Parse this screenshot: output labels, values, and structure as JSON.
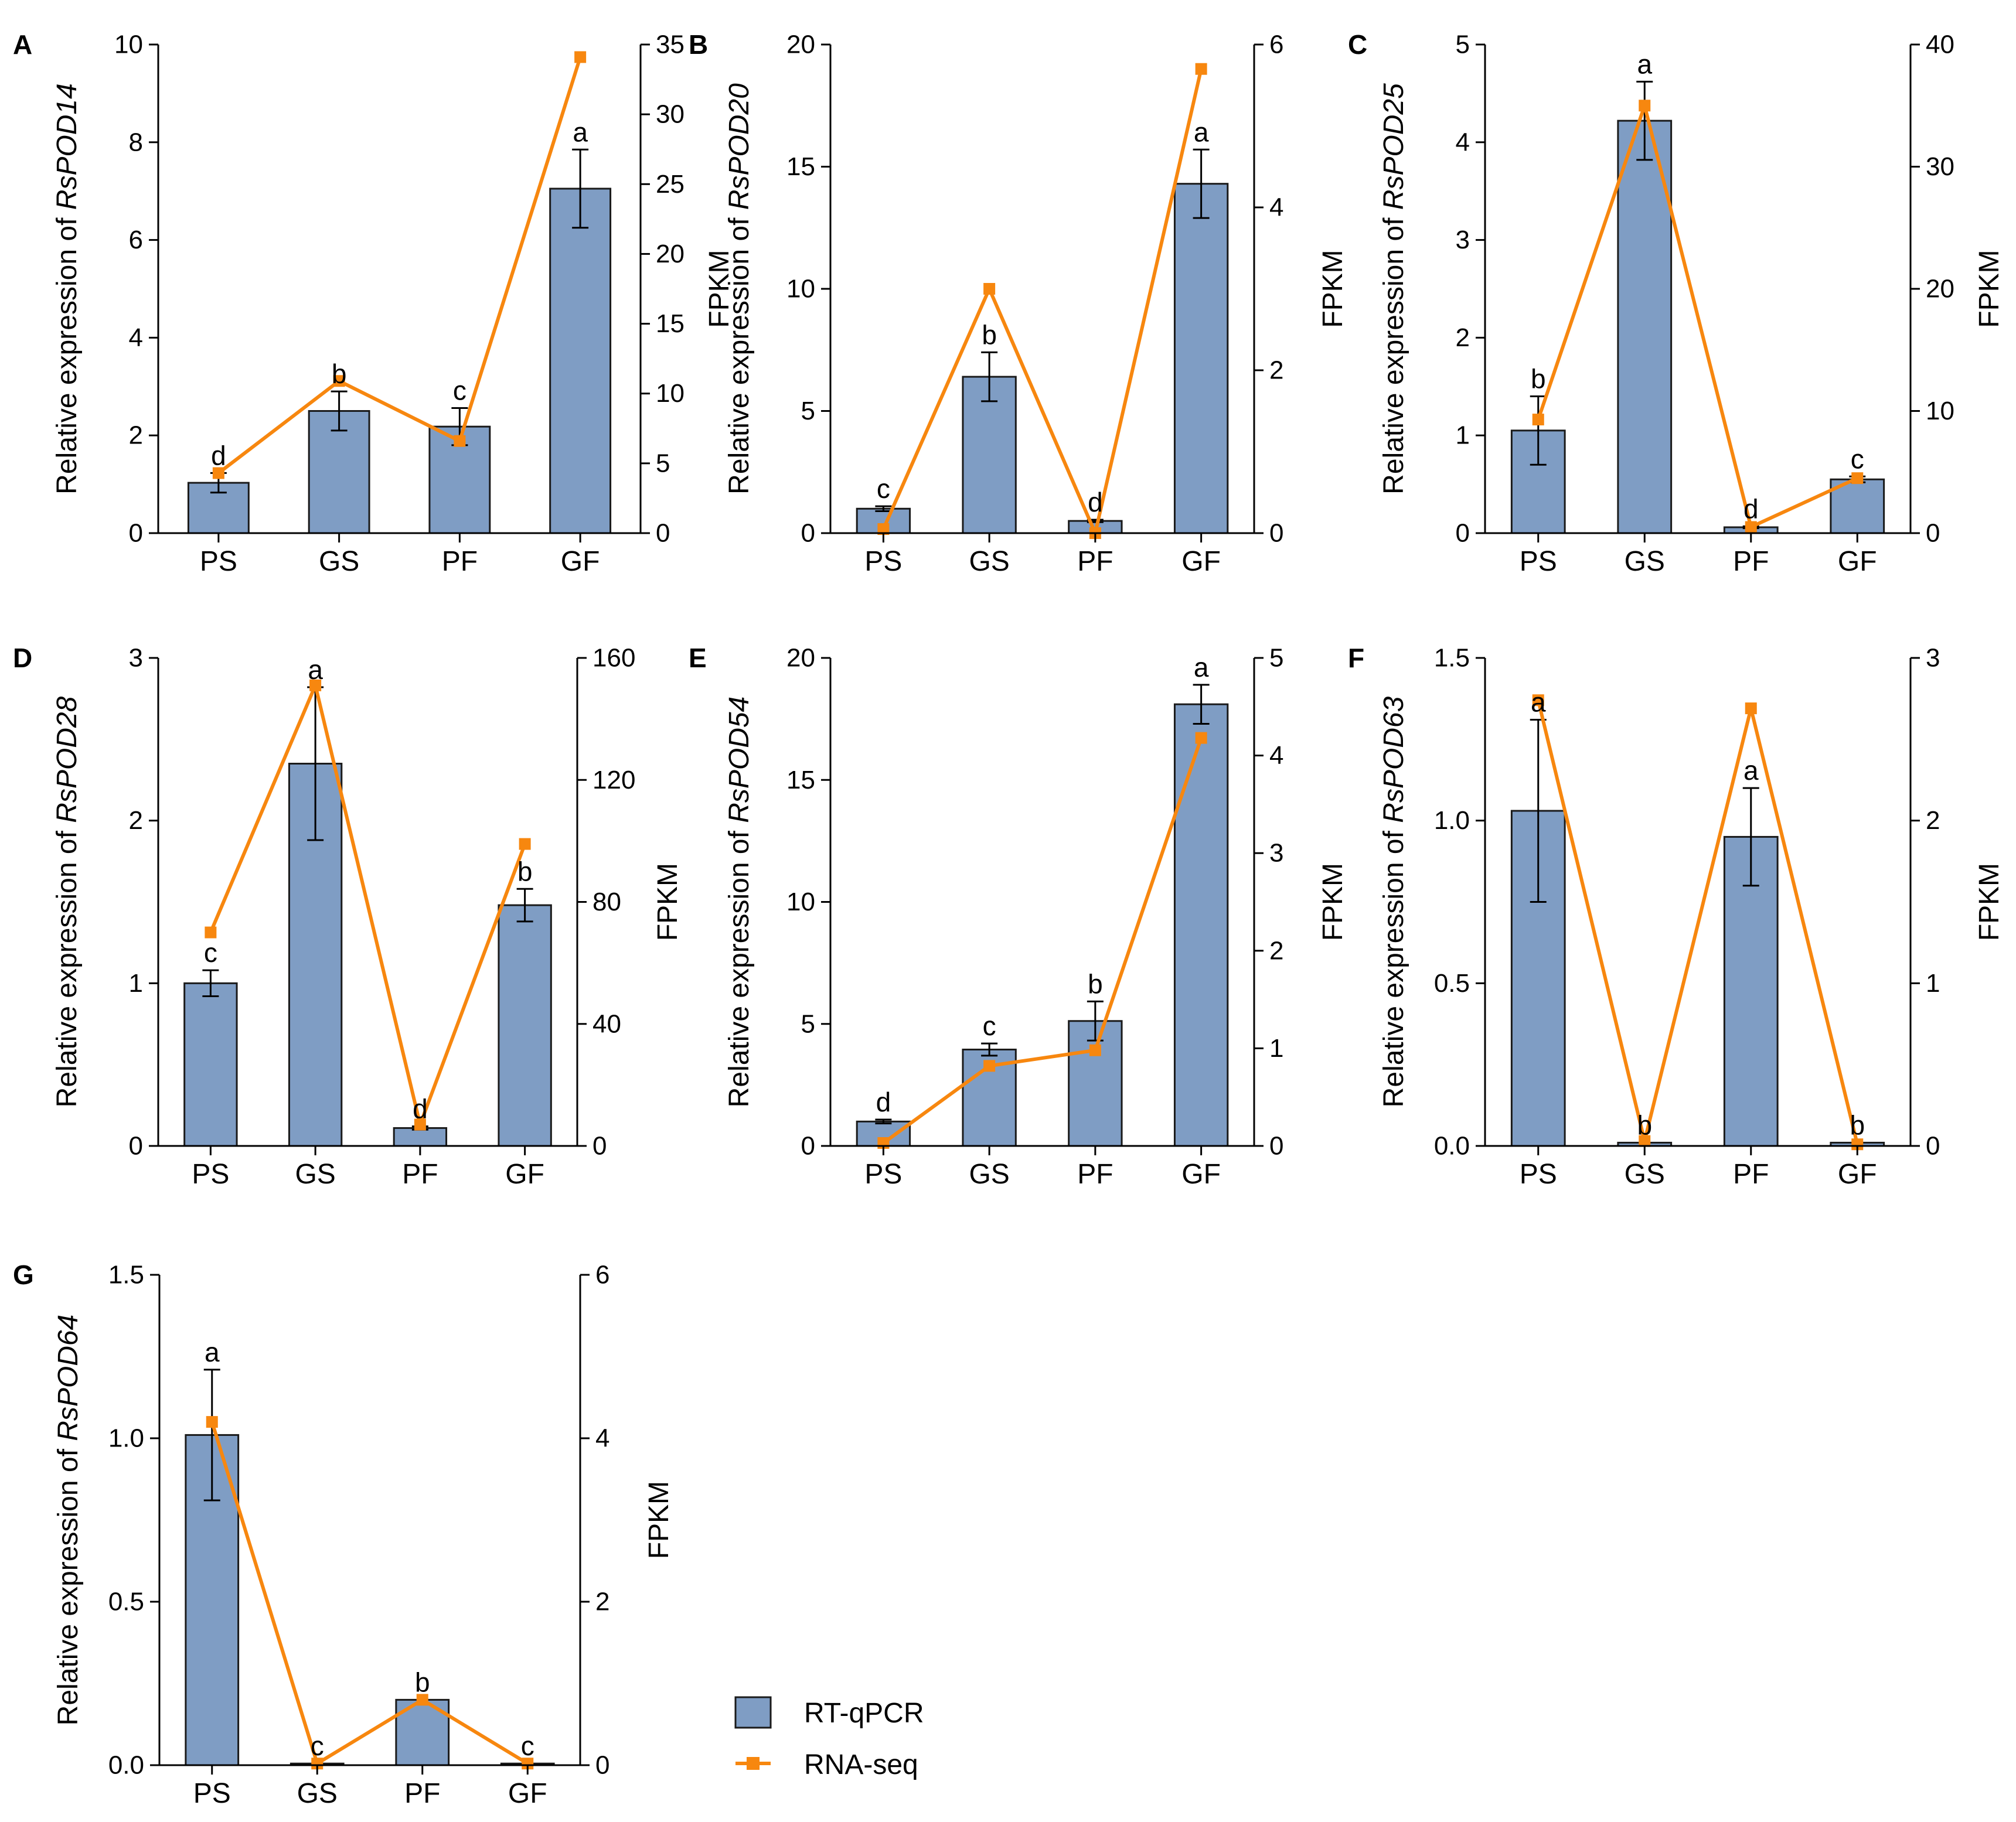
{
  "colors": {
    "bar_fill": "#7f9dc4",
    "bar_stroke": "#1a1a1a",
    "line": "#f7870f",
    "axis": "#000000"
  },
  "legend": {
    "bar_label": "RT-qPCR",
    "line_label": "RNA-seq"
  },
  "chart_data": [
    {
      "type": "bar",
      "panel": "A",
      "gene": "RsPOD14",
      "ylabel_prefix": "Relative expression of ",
      "y2label": "FPKM",
      "categories": [
        "PS",
        "GS",
        "PF",
        "GF"
      ],
      "ylim": [
        0,
        10
      ],
      "yticks": [
        0,
        2,
        4,
        6,
        8,
        10
      ],
      "ytick_labels": [
        "0",
        "2",
        "4",
        "6",
        "8",
        "10"
      ],
      "y2lim": [
        0,
        35
      ],
      "y2ticks": [
        0,
        5,
        10,
        15,
        20,
        25,
        30,
        35
      ],
      "y2tick_labels": [
        "0",
        "5",
        "10",
        "15",
        "20",
        "25",
        "30",
        "35"
      ],
      "series": [
        {
          "name": "RT-qPCR",
          "values": [
            1.03,
            2.5,
            2.18,
            7.05
          ],
          "errors": [
            0.2,
            0.4,
            0.38,
            0.8
          ],
          "letters": [
            "d",
            "b",
            "c",
            "a"
          ]
        },
        {
          "name": "RNA-seq",
          "values": [
            4.3,
            10.9,
            6.6,
            34.1
          ]
        }
      ]
    },
    {
      "type": "bar",
      "panel": "B",
      "gene": "RsPOD20",
      "ylabel_prefix": "Relative expression of ",
      "y2label": "FPKM",
      "categories": [
        "PS",
        "GS",
        "PF",
        "GF"
      ],
      "ylim": [
        0,
        20
      ],
      "yticks": [
        0,
        5,
        10,
        15,
        20
      ],
      "ytick_labels": [
        "0",
        "5",
        "10",
        "15",
        "20"
      ],
      "y2lim": [
        0,
        6
      ],
      "y2ticks": [
        0,
        2,
        4,
        6
      ],
      "y2tick_labels": [
        "0",
        "2",
        "4",
        "6"
      ],
      "series": [
        {
          "name": "RT-qPCR",
          "values": [
            1.0,
            6.4,
            0.5,
            14.3
          ],
          "errors": [
            0.1,
            1.0,
            0.05,
            1.4
          ],
          "letters": [
            "c",
            "b",
            "d",
            "a"
          ]
        },
        {
          "name": "RNA-seq",
          "values": [
            0.05,
            3.0,
            0.0,
            5.7
          ]
        }
      ]
    },
    {
      "type": "bar",
      "panel": "C",
      "gene": "RsPOD25",
      "ylabel_prefix": "Relative expression of ",
      "y2label": "FPKM",
      "categories": [
        "PS",
        "GS",
        "PF",
        "GF"
      ],
      "ylim": [
        0,
        5
      ],
      "yticks": [
        0,
        1,
        2,
        3,
        4,
        5
      ],
      "ytick_labels": [
        "0",
        "1",
        "2",
        "3",
        "4",
        "5"
      ],
      "y2lim": [
        0,
        40
      ],
      "y2ticks": [
        0,
        10,
        20,
        30,
        40
      ],
      "y2tick_labels": [
        "0",
        "10",
        "20",
        "30",
        "40"
      ],
      "series": [
        {
          "name": "RT-qPCR",
          "values": [
            1.05,
            4.22,
            0.06,
            0.55
          ],
          "errors": [
            0.35,
            0.4,
            0.01,
            0.03
          ],
          "letters": [
            "b",
            "a",
            "d",
            "c"
          ]
        },
        {
          "name": "RNA-seq",
          "values": [
            9.3,
            35.0,
            0.5,
            4.5
          ]
        }
      ]
    },
    {
      "type": "bar",
      "panel": "D",
      "gene": "RsPOD28",
      "ylabel_prefix": "Relative expression of ",
      "y2label": "FPKM",
      "categories": [
        "PS",
        "GS",
        "PF",
        "GF"
      ],
      "ylim": [
        0,
        3
      ],
      "yticks": [
        0,
        1,
        2,
        3
      ],
      "ytick_labels": [
        "0",
        "1",
        "2",
        "3"
      ],
      "y2lim": [
        0,
        160
      ],
      "y2ticks": [
        0,
        40,
        80,
        120,
        160
      ],
      "y2tick_labels": [
        "0",
        "40",
        "80",
        "120",
        "160"
      ],
      "series": [
        {
          "name": "RT-qPCR",
          "values": [
            1.0,
            2.35,
            0.11,
            1.48
          ],
          "errors": [
            0.08,
            0.47,
            0.01,
            0.1
          ],
          "letters": [
            "c",
            "a",
            "d",
            "b"
          ]
        },
        {
          "name": "RNA-seq",
          "values": [
            70,
            151,
            7,
            99
          ]
        }
      ]
    },
    {
      "type": "bar",
      "panel": "E",
      "gene": "RsPOD54",
      "ylabel_prefix": "Relative expression of ",
      "y2label": "FPKM",
      "categories": [
        "PS",
        "GS",
        "PF",
        "GF"
      ],
      "ylim": [
        0,
        20
      ],
      "yticks": [
        0,
        5,
        10,
        15,
        20
      ],
      "ytick_labels": [
        "0",
        "5",
        "10",
        "15",
        "20"
      ],
      "y2lim": [
        0,
        5
      ],
      "y2ticks": [
        0,
        1,
        2,
        3,
        4,
        5
      ],
      "y2tick_labels": [
        "0",
        "1",
        "2",
        "3",
        "4",
        "5"
      ],
      "series": [
        {
          "name": "RT-qPCR",
          "values": [
            1.0,
            3.95,
            5.12,
            18.1
          ],
          "errors": [
            0.08,
            0.25,
            0.8,
            0.8
          ],
          "letters": [
            "d",
            "c",
            "b",
            "a"
          ]
        },
        {
          "name": "RNA-seq",
          "values": [
            0.03,
            0.82,
            0.98,
            4.18
          ]
        }
      ]
    },
    {
      "type": "bar",
      "panel": "F",
      "gene": "RsPOD63",
      "ylabel_prefix": "Relative expression of ",
      "y2label": "FPKM",
      "categories": [
        "PS",
        "GS",
        "PF",
        "GF"
      ],
      "ylim": [
        0,
        1.5
      ],
      "yticks": [
        0,
        0.5,
        1.0,
        1.5
      ],
      "ytick_labels": [
        "0.0",
        "0.5",
        "1.0",
        "1.5"
      ],
      "y2lim": [
        0,
        3
      ],
      "y2ticks": [
        0,
        1,
        2,
        3
      ],
      "y2tick_labels": [
        "0",
        "1",
        "2",
        "3"
      ],
      "series": [
        {
          "name": "RT-qPCR",
          "values": [
            1.03,
            0.01,
            0.95,
            0.01
          ],
          "errors": [
            0.28,
            0.0,
            0.15,
            0.0
          ],
          "letters": [
            "a",
            "b",
            "a",
            "b"
          ]
        },
        {
          "name": "RNA-seq",
          "values": [
            2.74,
            0.03,
            2.69,
            0.01
          ]
        }
      ]
    },
    {
      "type": "bar",
      "panel": "G",
      "gene": "RsPOD64",
      "ylabel_prefix": "Relative expression of ",
      "y2label": "FPKM",
      "categories": [
        "PS",
        "GS",
        "PF",
        "GF"
      ],
      "ylim": [
        0,
        1.5
      ],
      "yticks": [
        0,
        0.5,
        1.0,
        1.5
      ],
      "ytick_labels": [
        "0.0",
        "0.5",
        "1.0",
        "1.5"
      ],
      "y2lim": [
        0,
        6
      ],
      "y2ticks": [
        0,
        2,
        4,
        6
      ],
      "y2tick_labels": [
        "0",
        "2",
        "4",
        "6"
      ],
      "series": [
        {
          "name": "RT-qPCR",
          "values": [
            1.01,
            0.005,
            0.2,
            0.005
          ],
          "errors": [
            0.2,
            0.0,
            0.0,
            0.0
          ],
          "letters": [
            "a",
            "c",
            "b",
            "c"
          ]
        },
        {
          "name": "RNA-seq",
          "values": [
            4.2,
            0.02,
            0.8,
            0.02
          ]
        }
      ]
    }
  ]
}
